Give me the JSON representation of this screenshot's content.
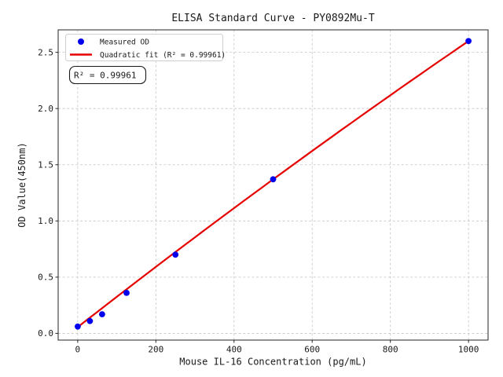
{
  "chart_data": {
    "type": "scatter",
    "title": "ELISA Standard Curve - PY0892Mu-T",
    "xlabel": "Mouse IL-16 Concentration (pg/mL)",
    "ylabel": "OD Value(450nm)",
    "xlim": [
      -50,
      1050
    ],
    "ylim": [
      -0.06,
      2.7
    ],
    "xticks": [
      0,
      200,
      400,
      600,
      800,
      1000
    ],
    "xtick_labels": [
      "0",
      "200",
      "400",
      "600",
      "800",
      "1000"
    ],
    "yticks": [
      0.0,
      0.5,
      1.0,
      1.5,
      2.0,
      2.5
    ],
    "ytick_labels": [
      "0.0",
      "0.5",
      "1.0",
      "1.5",
      "2.0",
      "2.5"
    ],
    "grid": true,
    "colors": {
      "points": "#0000ee",
      "fit_line": "#e60000",
      "grid": "#c6c6c6",
      "spine": "#262626"
    },
    "series": [
      {
        "name": "Measured OD",
        "type": "scatter",
        "color": "#0000ee",
        "x": [
          0,
          31.25,
          62.5,
          125,
          250,
          500,
          1000
        ],
        "y": [
          0.06,
          0.11,
          0.17,
          0.36,
          0.7,
          1.37,
          2.6
        ]
      },
      {
        "name": "Quadratic fit (R² = 0.99961)",
        "type": "line",
        "color": "#e60000",
        "fit_coefficients": {
          "a": 0.055,
          "b": 0.002715,
          "c": -1.7e-07
        },
        "x_range": [
          0,
          1000
        ]
      }
    ],
    "legend": {
      "position": "upper left",
      "entries": [
        {
          "label": "Measured OD",
          "marker": "circle",
          "color": "#0000ee"
        },
        {
          "label": "Quadratic fit (R² = 0.99961)",
          "marker": "line",
          "color": "#e60000"
        }
      ]
    },
    "annotation": {
      "text": "R² = 0.99961"
    },
    "r_squared": 0.99961
  }
}
